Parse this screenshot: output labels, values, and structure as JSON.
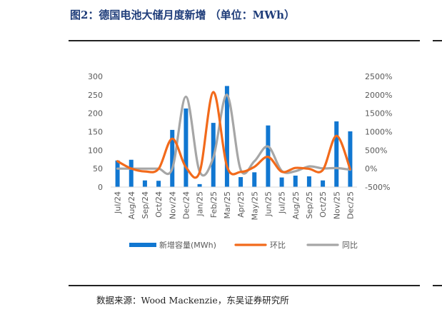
{
  "page": {
    "title": "图2：德国电池大储月度新增 （单位：MWh）",
    "source": "数据来源：Wood Mackenzie，东吴证券研究所"
  },
  "chart_data": {
    "type": "bar",
    "categories": [
      "Jul/24",
      "Aug/24",
      "Sep/24",
      "Oct/24",
      "Nov/24",
      "Dec/24",
      "Jan/25",
      "Feb/25",
      "Mar/25",
      "Apr/25",
      "May/25",
      "Jun/25",
      "Jul/25",
      "Aug/25",
      "Sep/25",
      "Oct/25",
      "Nov/25",
      "Dec/25"
    ],
    "series": [
      {
        "name": "新增容量(MWh)",
        "type": "bar",
        "axis": "left",
        "color": "#1177d1",
        "values": [
          72,
          74,
          18,
          17,
          155,
          213,
          8,
          174,
          274,
          27,
          40,
          167,
          26,
          31,
          29,
          18,
          178,
          151
        ]
      },
      {
        "name": "环比",
        "type": "line",
        "axis": "right",
        "color": "#f26a1b",
        "values": [
          200,
          3,
          -76,
          -6,
          812,
          37,
          -96,
          2075,
          57,
          -90,
          48,
          318,
          -84,
          19,
          -6,
          -38,
          889,
          -15
        ]
      },
      {
        "name": "同比",
        "type": "line",
        "axis": "right",
        "color": "#a6a6a6",
        "values": [
          0,
          0,
          0,
          0,
          0,
          1950,
          -80,
          300,
          2000,
          -30,
          200,
          600,
          -60,
          -70,
          60,
          6,
          15,
          -29
        ]
      }
    ],
    "ylim_left": [
      0,
      300
    ],
    "ylim_right": [
      -500,
      2500
    ],
    "left_ticks": [
      "0",
      "50",
      "100",
      "150",
      "200",
      "250",
      "300"
    ],
    "right_ticks": [
      "-500%",
      "0%",
      "500%",
      "1000%",
      "1500%",
      "2000%",
      "2500%"
    ],
    "legend_position": "bottom",
    "grid": false
  }
}
